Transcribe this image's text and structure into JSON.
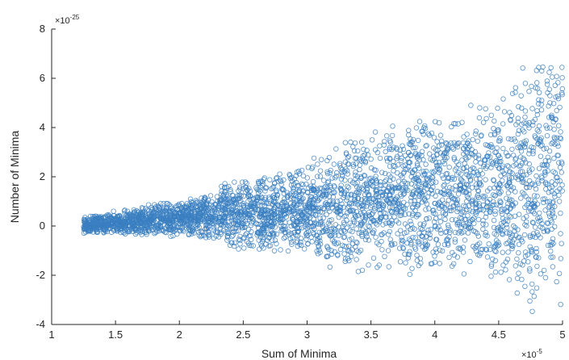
{
  "chart_data": {
    "type": "scatter",
    "xlabel": "Sum of Minima",
    "ylabel": "Number of Minima",
    "x_multiplier_text": "×10",
    "x_multiplier_exp": "-5",
    "y_multiplier_text": "×10",
    "y_multiplier_exp": "-25",
    "xlim": [
      1,
      5
    ],
    "ylim": [
      -4,
      8
    ],
    "x_ticks": [
      "1",
      "1.5",
      "2",
      "2.5",
      "3",
      "3.5",
      "4",
      "4.5",
      "5"
    ],
    "y_ticks": [
      "-4",
      "-2",
      "0",
      "2",
      "4",
      "6",
      "8"
    ],
    "grid": false,
    "marker": "open-circle",
    "color": "#3a7fc1",
    "envelope": [
      {
        "x": 1.25,
        "ymin": -0.3,
        "ymax": 0.4
      },
      {
        "x": 1.5,
        "ymin": -0.35,
        "ymax": 0.6
      },
      {
        "x": 2.0,
        "ymin": -0.45,
        "ymax": 1.1
      },
      {
        "x": 2.3,
        "ymin": -0.55,
        "ymax": 1.3
      },
      {
        "x": 2.35,
        "ymin": -1.0,
        "ymax": 1.8
      },
      {
        "x": 3.0,
        "ymin": -1.2,
        "ymax": 2.5
      },
      {
        "x": 3.15,
        "ymin": -1.7,
        "ymax": 3.2
      },
      {
        "x": 3.5,
        "ymin": -1.8,
        "ymax": 3.9
      },
      {
        "x": 4.0,
        "ymin": -2.0,
        "ymax": 4.5
      },
      {
        "x": 4.5,
        "ymin": -2.1,
        "ymax": 5.2
      },
      {
        "x": 4.75,
        "ymin": -3.5,
        "ymax": 7.0
      },
      {
        "x": 5.0,
        "ymin": -3.5,
        "ymax": 7.2
      }
    ]
  }
}
